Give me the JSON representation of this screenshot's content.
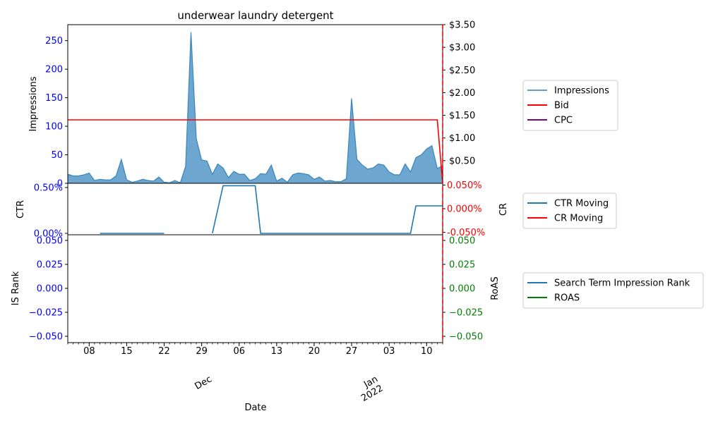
{
  "title": "underwear laundry detergent",
  "xlabel": "Date",
  "x_ticks": [
    {
      "date": "2021-11-08",
      "label": "08"
    },
    {
      "date": "2021-11-15",
      "label": "15"
    },
    {
      "date": "2021-11-22",
      "label": "22"
    },
    {
      "date": "2021-11-29",
      "label": "29"
    },
    {
      "date": "2021-12-06",
      "label": "06"
    },
    {
      "date": "2021-12-13",
      "label": "13"
    },
    {
      "date": "2021-12-20",
      "label": "20"
    },
    {
      "date": "2021-12-27",
      "label": "27"
    },
    {
      "date": "2022-01-03",
      "label": "03"
    },
    {
      "date": "2022-01-10",
      "label": "10"
    }
  ],
  "month_labels": [
    {
      "date": "2021-12-01",
      "lines": [
        "Dec"
      ]
    },
    {
      "date": "2022-01-01",
      "lines": [
        "Jan",
        "2022"
      ]
    }
  ],
  "colors": {
    "impressions": "#1f77b4",
    "bid": "#ff0000",
    "cpc": "#800080",
    "ctr": "#1f77b4",
    "cr": "#ff0000",
    "is_rank": "#1f77b4",
    "roas": "#008000",
    "left_tick": "#0000ff",
    "cr_tick": "#ff0000",
    "roas_tick": "#008000"
  },
  "chart_data": [
    {
      "type": "area",
      "panel": "top",
      "ylabel": "Impressions",
      "ylim": [
        0,
        278
      ],
      "yticks": [
        0,
        50,
        100,
        150,
        200,
        250
      ],
      "y2lim": [
        0,
        3.5
      ],
      "y2ticks": [
        "$0.50",
        "$1.00",
        "$1.50",
        "$2.00",
        "$2.50",
        "$3.00",
        "$3.50"
      ],
      "y2tick_values": [
        0.5,
        1.0,
        1.5,
        2.0,
        2.5,
        3.0,
        3.5
      ],
      "x_start": "2021-11-04",
      "series": [
        {
          "name": "Impressions",
          "kind": "area",
          "values": [
            16,
            13,
            13,
            15,
            18,
            5,
            7,
            6,
            6,
            13,
            42,
            6,
            2,
            4,
            7,
            5,
            4,
            11,
            2,
            1,
            5,
            1,
            30,
            265,
            78,
            41,
            39,
            16,
            34,
            27,
            10,
            21,
            16,
            16,
            5,
            8,
            17,
            16,
            32,
            4,
            9,
            2,
            15,
            18,
            17,
            15,
            7,
            11,
            4,
            5,
            3,
            3,
            8,
            149,
            42,
            32,
            25,
            27,
            34,
            32,
            20,
            15,
            15,
            34,
            20,
            45,
            50,
            60,
            66,
            26,
            31
          ]
        },
        {
          "name": "Bid",
          "kind": "line",
          "axis": "right",
          "points": [
            [
              "2021-11-04",
              1.4
            ],
            [
              "2022-01-12",
              1.4
            ],
            [
              "2022-01-13",
              0.0
            ]
          ]
        },
        {
          "name": "CPC",
          "kind": "line",
          "axis": "right",
          "points": []
        }
      ],
      "legend": [
        "Impressions",
        "Bid",
        "CPC"
      ]
    },
    {
      "type": "line",
      "panel": "middle",
      "ylabel": "CTR",
      "yticks": [
        "0.00%",
        "0.50%"
      ],
      "ylim": [
        0,
        0.005
      ],
      "y2label": "CR",
      "y2ticks": [
        "-0.050%",
        "0.000%",
        "0.050%"
      ],
      "y2lim": [
        -0.0005,
        0.0005
      ],
      "series": [
        {
          "name": "CTR Moving",
          "segments": [
            [
              [
                "2021-11-10",
                0
              ],
              [
                "2021-11-22",
                0
              ]
            ],
            [
              [
                "2021-12-01",
                0
              ],
              [
                "2021-12-03",
                0.0052
              ],
              [
                "2021-12-09",
                0.0052
              ],
              [
                "2021-12-10",
                0
              ],
              [
                "2022-01-07",
                0
              ],
              [
                "2022-01-08",
                0.003
              ],
              [
                "2022-01-13",
                0.003
              ]
            ]
          ]
        },
        {
          "name": "CR Moving",
          "segments": []
        }
      ],
      "legend": [
        "CTR Moving",
        "CR Moving"
      ]
    },
    {
      "type": "line",
      "panel": "bottom",
      "ylabel": "IS Rank",
      "yticks": [
        "−0.050",
        "−0.025",
        "0.000",
        "0.025",
        "0.050"
      ],
      "ylim": [
        -0.055,
        0.055
      ],
      "y2label": "RoAS",
      "y2ticks": [
        "−0.050",
        "−0.025",
        "0.000",
        "0.025",
        "0.050"
      ],
      "series": [
        {
          "name": "Search Term Impression Rank",
          "points": []
        },
        {
          "name": "ROAS",
          "points": []
        }
      ],
      "legend": [
        "Search Term Impression Rank",
        "ROAS"
      ]
    }
  ]
}
